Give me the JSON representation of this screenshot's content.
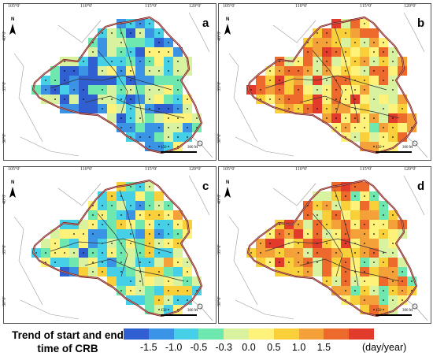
{
  "panels": [
    {
      "label": "a",
      "seed": 3,
      "bias": -1.05
    },
    {
      "label": "b",
      "seed": 11,
      "bias": 0.95
    },
    {
      "label": "c",
      "seed": 17,
      "bias": -0.55
    },
    {
      "label": "d",
      "seed": 29,
      "bias": 0.8
    }
  ],
  "lon_labels": [
    "105°0'",
    "110°0'",
    "115°0'",
    "120°0'"
  ],
  "lat_labels": [
    "40°0'",
    "35°0'",
    "30°0'"
  ],
  "north_label": "N",
  "scale_labels": [
    "150",
    "300 M"
  ],
  "legend": {
    "title": "Trend of start and end time of CRB",
    "colors": [
      "#2f5fd0",
      "#3b93e6",
      "#46d0e8",
      "#6fe8b0",
      "#d8f2a0",
      "#fff27a",
      "#f9cf3a",
      "#f5a13a",
      "#ee6a2c",
      "#e23b2b"
    ],
    "ticks": [
      "-1.5",
      "-1.0",
      "-0.5",
      "-0.3",
      "0.0",
      "0.5",
      "1.0",
      "1.5"
    ],
    "unit": "(day/year)"
  }
}
